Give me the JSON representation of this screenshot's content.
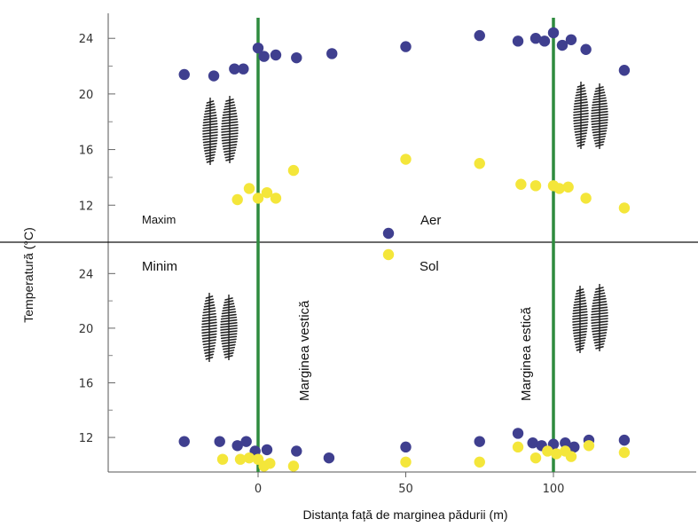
{
  "chart_data": {
    "type": "scatter",
    "title": "",
    "xlabel": "Distanța față de marginea pădurii (m)",
    "ylabel": "Temperatură (°C)",
    "x_ticks": [
      0,
      50,
      100
    ],
    "xlim": [
      -45,
      150
    ],
    "colors": {
      "max": "#3f3f8f",
      "min": "#f4e63a",
      "edge": "#2e8b3e",
      "tree": "#222222"
    },
    "edges": [
      {
        "x": 0,
        "label": "Marginea vestică"
      },
      {
        "x": 100,
        "label": "Marginea estică"
      }
    ],
    "labels": {
      "maxim": "Maxim",
      "minim": "Minim",
      "aer": "Aer",
      "sol": "Sol"
    },
    "panels": [
      {
        "name": "Aer",
        "y_ticks": [
          12,
          16,
          20,
          24
        ],
        "ylim": [
          9.4,
          25.8
        ],
        "max": {
          "x": [
            -25,
            -15,
            -8,
            -5,
            0,
            2,
            6,
            13,
            25,
            50,
            75,
            88,
            94,
            97,
            100,
            103,
            106,
            111,
            124
          ],
          "y": [
            21.4,
            21.3,
            21.8,
            21.8,
            23.3,
            22.7,
            22.8,
            22.6,
            22.9,
            23.4,
            24.2,
            23.8,
            24.0,
            23.8,
            24.4,
            23.5,
            23.9,
            23.2,
            21.7
          ]
        },
        "min": {
          "x": [
            -7,
            -3,
            0,
            3,
            6,
            12,
            50,
            75,
            89,
            94,
            100,
            102,
            105,
            111,
            124
          ],
          "y": [
            12.4,
            13.2,
            12.5,
            12.9,
            12.5,
            14.5,
            15.3,
            15.0,
            13.5,
            13.4,
            13.4,
            13.2,
            13.3,
            12.5,
            11.8
          ]
        }
      },
      {
        "name": "Sol",
        "y_ticks": [
          12,
          16,
          20,
          24
        ],
        "ylim": [
          9.6,
          26.1
        ],
        "max": {
          "x": [
            -25,
            -13,
            -7,
            -4,
            -1,
            3,
            13,
            24,
            50,
            75,
            88,
            93,
            96,
            100,
            104,
            107,
            112,
            124
          ],
          "y": [
            11.7,
            11.7,
            11.4,
            11.7,
            11.0,
            11.1,
            11.0,
            10.5,
            11.3,
            11.7,
            12.3,
            11.6,
            11.4,
            11.5,
            11.6,
            11.3,
            11.8,
            11.8
          ]
        },
        "min": {
          "x": [
            -12,
            -6,
            -3,
            0,
            2,
            4,
            12,
            50,
            75,
            88,
            94,
            98,
            101,
            104,
            106,
            112,
            124
          ],
          "y": [
            10.4,
            10.4,
            10.5,
            10.4,
            9.9,
            10.1,
            9.9,
            10.2,
            10.2,
            11.3,
            10.5,
            11.0,
            10.8,
            11.0,
            10.6,
            11.4,
            10.9
          ]
        }
      }
    ]
  }
}
